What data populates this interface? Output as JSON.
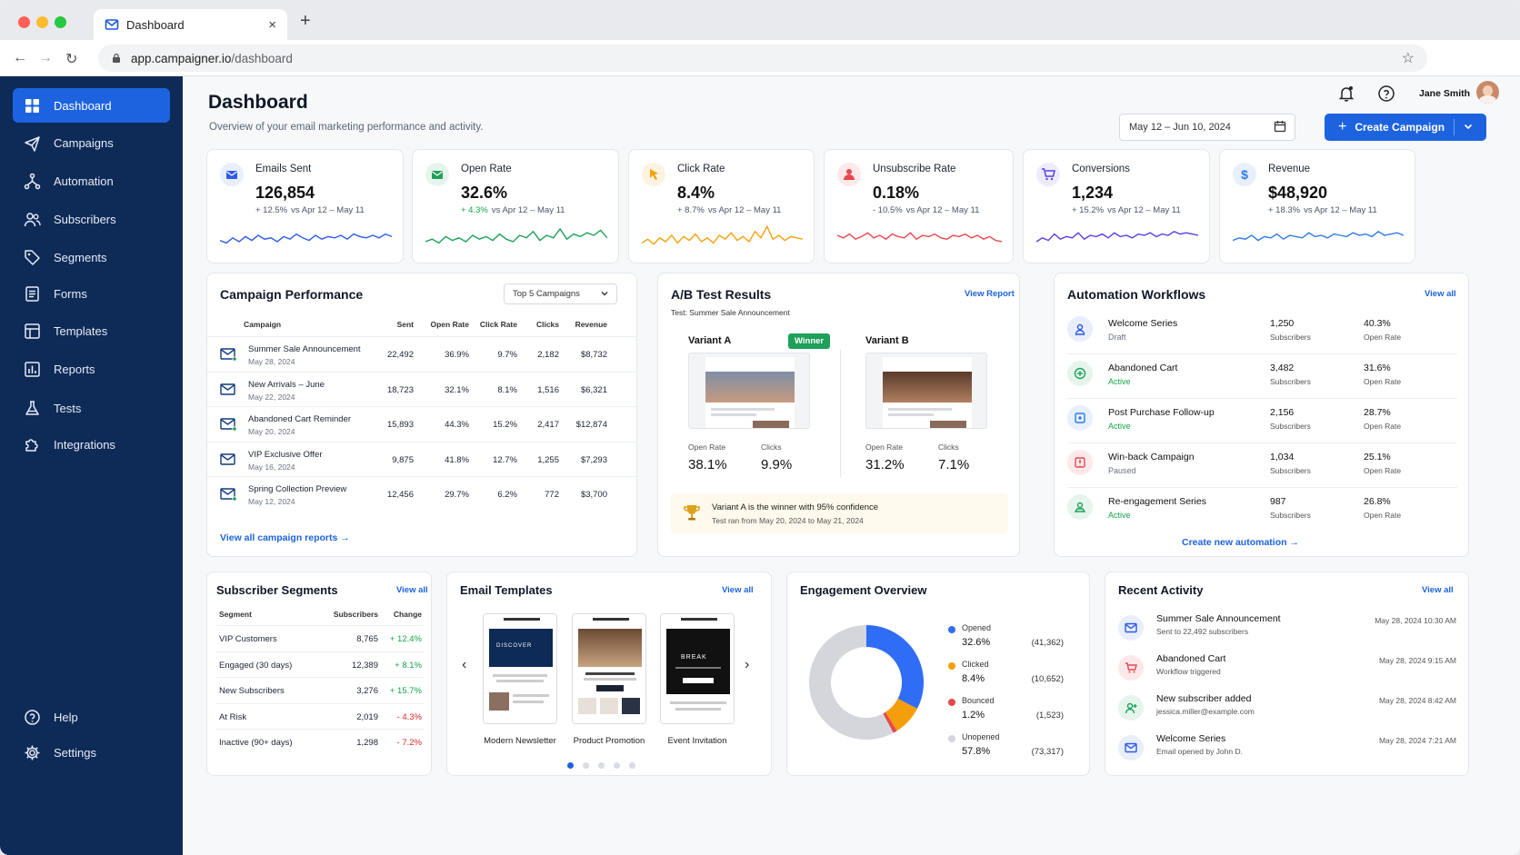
{
  "browser": {
    "tab_title": "Dashboard",
    "url_host": "app.campaigner.io",
    "url_path": "/dashboard"
  },
  "sidebar": {
    "items": [
      {
        "label": "Dashboard",
        "icon": "dashboard-icon",
        "active": true
      },
      {
        "label": "Campaigns",
        "icon": "send-icon"
      },
      {
        "label": "Automation",
        "icon": "flow-icon"
      },
      {
        "label": "Subscribers",
        "icon": "users-icon"
      },
      {
        "label": "Segments",
        "icon": "tag-icon"
      },
      {
        "label": "Forms",
        "icon": "form-icon"
      },
      {
        "label": "Templates",
        "icon": "layout-icon"
      },
      {
        "label": "Reports",
        "icon": "bar-chart-icon"
      },
      {
        "label": "Tests",
        "icon": "flask-icon"
      },
      {
        "label": "Integrations",
        "icon": "puzzle-icon"
      }
    ],
    "footer": [
      {
        "label": "Help",
        "icon": "help-icon"
      },
      {
        "label": "Settings",
        "icon": "gear-icon"
      }
    ]
  },
  "header": {
    "title": "Dashboard",
    "subtitle": "Overview of your email marketing performance and activity.",
    "user_name": "Jane Smith",
    "date_range": "May 12 – Jun 10, 2024",
    "create_button": "Create Campaign"
  },
  "kpis": [
    {
      "label": "Emails Sent",
      "value": "126,854",
      "change": "+ 12.5%",
      "period": "vs Apr 12 – May 11",
      "color": "#2f5bea"
    },
    {
      "label": "Open Rate",
      "value": "32.6%",
      "change": "+ 4.3%",
      "period": "vs Apr 12 – May 11",
      "color": "#1fa05a"
    },
    {
      "label": "Click Rate",
      "value": "8.4%",
      "change": "+ 8.7%",
      "period": "vs Apr 12 – May 11",
      "color": "#f5a10a"
    },
    {
      "label": "Unsubscribe Rate",
      "value": "0.18%",
      "change": "- 10.5%",
      "period": "vs Apr 12 – May 11",
      "color": "#e5484d"
    },
    {
      "label": "Conversions",
      "value": "1,234",
      "change": "+ 15.2%",
      "period": "vs Apr 12 – May 11",
      "color": "#5b3fe0"
    },
    {
      "label": "Revenue",
      "value": "$48,920",
      "change": "+ 18.3%",
      "period": "vs Apr 12 – May 11",
      "color": "#2f7be6"
    }
  ],
  "campaign_performance": {
    "title": "Campaign Performance",
    "filter": "Top 5 Campaigns",
    "columns": [
      "Campaign",
      "Sent",
      "Open Rate",
      "Click Rate",
      "Clicks",
      "Revenue"
    ],
    "rows": [
      {
        "name": "Summer Sale Announcement",
        "date": "May 28, 2024",
        "sent": "22,492",
        "open": "36.9%",
        "click": "9.7%",
        "clicks": "2,182",
        "revenue": "$8,732"
      },
      {
        "name": "New Arrivals – June",
        "date": "May 22, 2024",
        "sent": "18,723",
        "open": "32.1%",
        "click": "8.1%",
        "clicks": "1,516",
        "revenue": "$6,321"
      },
      {
        "name": "Abandoned Cart Reminder",
        "date": "May 20, 2024",
        "sent": "15,893",
        "open": "44.3%",
        "click": "15.2%",
        "clicks": "2,417",
        "revenue": "$12,874"
      },
      {
        "name": "VIP Exclusive Offer",
        "date": "May 16, 2024",
        "sent": "9,875",
        "open": "41.8%",
        "click": "12.7%",
        "clicks": "1,255",
        "revenue": "$7,293"
      },
      {
        "name": "Spring Collection Preview",
        "date": "May 12, 2024",
        "sent": "12,456",
        "open": "29.7%",
        "click": "6.2%",
        "clicks": "772",
        "revenue": "$3,700"
      }
    ],
    "footer_link": "View all campaign reports →"
  },
  "ab_test": {
    "title": "A/B Test Results",
    "link": "View Report",
    "test_name": "Test: Summer Sale Announcement",
    "winner_badge": "Winner",
    "variants": [
      {
        "name": "Variant A",
        "open_label": "Open Rate",
        "open": "38.1%",
        "click_label": "Clicks",
        "click": "9.9%"
      },
      {
        "name": "Variant B",
        "open_label": "Open Rate",
        "open": "31.2%",
        "click_label": "Clicks",
        "click": "7.1%"
      }
    ],
    "result": "Variant A is the winner with 95% confidence",
    "result_sub": "Test ran from May 20, 2024 to May 21, 2024"
  },
  "automation": {
    "title": "Automation Workflows",
    "link": "View all",
    "rows": [
      {
        "name": "Welcome Series",
        "status": "Draft",
        "count": "1,250",
        "count_label": "Subscribers",
        "rate": "40.3%",
        "rate_label": "Open Rate",
        "color": "#2f5bea"
      },
      {
        "name": "Abandoned Cart",
        "status": "Active",
        "count": "3,482",
        "count_label": "Subscribers",
        "rate": "31.6%",
        "rate_label": "Open Rate",
        "color": "#1fa05a"
      },
      {
        "name": "Post Purchase Follow-up",
        "status": "Active",
        "count": "2,156",
        "count_label": "Subscribers",
        "rate": "28.7%",
        "rate_label": "Open Rate",
        "color": "#2f7be6"
      },
      {
        "name": "Win-back Campaign",
        "status": "Paused",
        "count": "1,034",
        "count_label": "Subscribers",
        "rate": "25.1%",
        "rate_label": "Open Rate",
        "color": "#e5484d"
      },
      {
        "name": "Re-engagement Series",
        "status": "Active",
        "count": "987",
        "count_label": "Subscribers",
        "rate": "26.8%",
        "rate_label": "Open Rate",
        "color": "#1fa05a"
      }
    ],
    "create_link": "Create new automation →"
  },
  "segments": {
    "title": "Subscriber Segments",
    "link": "View all",
    "columns": [
      "Segment",
      "Subscribers",
      "Change"
    ],
    "rows": [
      {
        "name": "VIP Customers",
        "count": "8,765",
        "change": "+ 12.4%",
        "up": true
      },
      {
        "name": "Engaged (30 days)",
        "count": "12,389",
        "change": "+ 8.1%",
        "up": true
      },
      {
        "name": "New Subscribers",
        "count": "3,276",
        "change": "+ 15.7%",
        "up": true
      },
      {
        "name": "At Risk",
        "count": "2,019",
        "change": "- 4.3%",
        "up": false
      },
      {
        "name": "Inactive (90+ days)",
        "count": "1,298",
        "change": "- 7.2%",
        "up": false
      }
    ]
  },
  "templates": {
    "title": "Email Templates",
    "link": "View all",
    "items": [
      {
        "name": "Modern Newsletter",
        "thumb_heading": "DISCOVER"
      },
      {
        "name": "Product Promotion",
        "thumb_heading": ""
      },
      {
        "name": "Event Invitation",
        "thumb_heading": "BREAK"
      }
    ]
  },
  "engagement": {
    "title": "Engagement Overview",
    "legend": [
      {
        "label": "Opened",
        "pct": "32.6%",
        "count": "(41,362)",
        "color": "#2f6df6"
      },
      {
        "label": "Clicked",
        "pct": "8.4%",
        "count": "(10,652)",
        "color": "#f59e0b"
      },
      {
        "label": "Bounced",
        "pct": "1.2%",
        "count": "(1,523)",
        "color": "#e5484d"
      },
      {
        "label": "Unopened",
        "pct": "57.8%",
        "count": "(73,317)",
        "color": "#d4d6db"
      }
    ]
  },
  "chart_data": {
    "type": "pie",
    "categories": [
      "Opened",
      "Clicked",
      "Bounced",
      "Unopened"
    ],
    "values": [
      32.6,
      8.4,
      1.2,
      57.8
    ],
    "counts": [
      41362,
      10652,
      1523,
      73317
    ],
    "title": "Engagement Overview"
  },
  "activity": {
    "title": "Recent Activity",
    "link": "View all",
    "items": [
      {
        "title": "Summer Sale Announcement",
        "sub": "Sent to 22,492 subscribers",
        "time": "May 28, 2024 10:30 AM",
        "color": "#2f5bea"
      },
      {
        "title": "Abandoned Cart",
        "sub": "Workflow triggered",
        "time": "May 28, 2024 9:15 AM",
        "color": "#e5484d"
      },
      {
        "title": "New subscriber added",
        "sub": "jessica.miller@example.com",
        "time": "May 28, 2024 8:42 AM",
        "color": "#1fa05a"
      },
      {
        "title": "Welcome Series",
        "sub": "Email opened by John D.",
        "time": "May 28, 2024 7:21 AM",
        "color": "#2f5bea"
      }
    ]
  }
}
